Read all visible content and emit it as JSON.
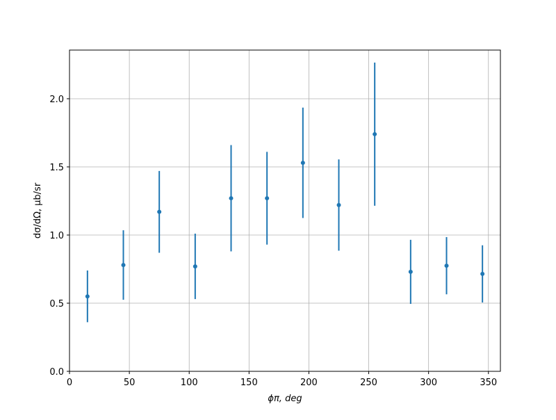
{
  "chart_data": {
    "type": "errorbar",
    "xlabel": "ϕπ, deg",
    "ylabel": "dσ/dΩ, μb/sr",
    "x": [
      15,
      45,
      75,
      105,
      135,
      165,
      195,
      225,
      255,
      285,
      315,
      345
    ],
    "values": [
      0.55,
      0.78,
      1.17,
      0.77,
      1.27,
      1.27,
      1.53,
      1.22,
      1.74,
      0.73,
      0.775,
      0.715
    ],
    "errors": [
      0.19,
      0.255,
      0.3,
      0.24,
      0.39,
      0.34,
      0.405,
      0.335,
      0.525,
      0.235,
      0.21,
      0.21
    ],
    "color": "#1f77b4",
    "xlim": [
      0,
      360
    ],
    "ylim": [
      0,
      2.357
    ],
    "xticks": [
      0,
      50,
      100,
      150,
      200,
      250,
      300,
      350
    ],
    "yticks": [
      {
        "value": 0,
        "label": "0.0"
      },
      {
        "value": 0.5,
        "label": "0.5"
      },
      {
        "value": 1,
        "label": "1.0"
      },
      {
        "value": 1.5,
        "label": "1.5"
      },
      {
        "value": 2,
        "label": "2.0"
      }
    ],
    "grid": true
  }
}
